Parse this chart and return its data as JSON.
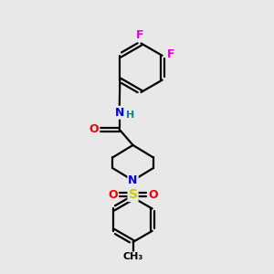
{
  "background_color": "#e8e8e8",
  "atom_colors": {
    "C": "#000000",
    "N": "#0000ee",
    "O": "#ee0000",
    "S": "#cccc00",
    "F": "#dd00dd",
    "H": "#008888"
  },
  "figsize": [
    3.0,
    3.0
  ],
  "dpi": 100,
  "xlim": [
    0,
    10
  ],
  "ylim": [
    0,
    10
  ]
}
